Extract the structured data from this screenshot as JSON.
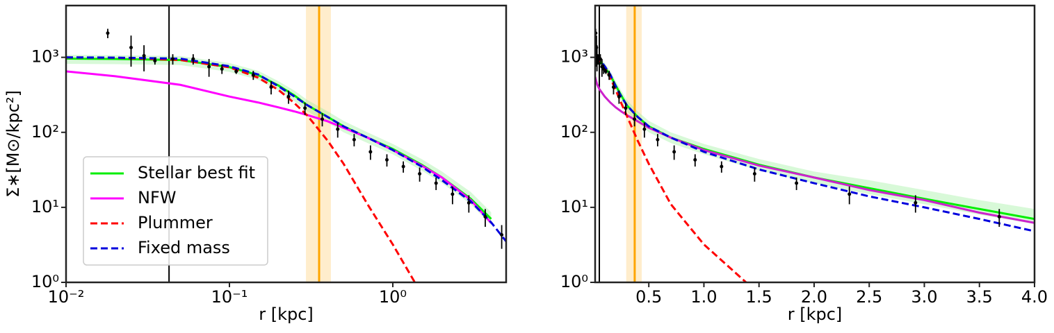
{
  "chart_data": [
    {
      "type": "line",
      "xscale": "log",
      "yscale": "log",
      "xlabel": "r [kpc]",
      "ylabel": "Σ∗[M⊙/kpc²]",
      "xlim": [
        0.01,
        4.94
      ],
      "ylim": [
        1,
        4900
      ],
      "xticks": [
        {
          "value": 0.01,
          "label": "10⁻²"
        },
        {
          "value": 0.1,
          "label": "10⁻¹"
        },
        {
          "value": 1,
          "label": "10⁰"
        }
      ],
      "yticks": [
        {
          "value": 1,
          "label": "10⁰"
        },
        {
          "value": 10,
          "label": "10¹"
        },
        {
          "value": 100,
          "label": "10²"
        },
        {
          "value": 1000,
          "label": "10³"
        }
      ],
      "legend": "lower left",
      "x": [
        0.01,
        0.02,
        0.05,
        0.1,
        0.15,
        0.2,
        0.25,
        0.3,
        0.4,
        0.5,
        0.7,
        1,
        1.5,
        2,
        3,
        4,
        5
      ],
      "band": {
        "color": "#90ee90",
        "lower": [
          820,
          810,
          790,
          640,
          500,
          360,
          260,
          190,
          135,
          100,
          72,
          51,
          31,
          21,
          11,
          5.8,
          null
        ],
        "upper": [
          1080,
          1070,
          1040,
          840,
          660,
          480,
          360,
          270,
          190,
          142,
          100,
          70,
          44,
          30,
          16,
          8.6,
          null
        ]
      },
      "series": [
        {
          "name": "Stellar best fit",
          "color": "#00ee00",
          "dash": false,
          "values": [
            960,
            950,
            920,
            740,
            580,
            420,
            310,
            230,
            160,
            120,
            85,
            60,
            37,
            25,
            13,
            7,
            null
          ]
        },
        {
          "name": "NFW",
          "color": "#ff00ff",
          "dash": false,
          "values": [
            650,
            560,
            430,
            300,
            250,
            215,
            190,
            170,
            140,
            115,
            85,
            58,
            36,
            25,
            12.5,
            6.2,
            null
          ]
        },
        {
          "name": "Plummer",
          "color": "#ff0000",
          "dash": true,
          "values": [
            997,
            987,
            922,
            736,
            536,
            366,
            245,
            167,
            77,
            38,
            11,
            3.2,
            0.7,
            null,
            null,
            null,
            null
          ]
        },
        {
          "name": "Fixed mass",
          "color": "#0000dd",
          "dash": true,
          "values": [
            1000,
            990,
            960,
            760,
            590,
            410,
            300,
            230,
            160,
            120,
            85,
            58,
            35,
            23,
            12,
            6.3,
            3.4
          ]
        }
      ],
      "points": {
        "color": "#000000",
        "x": [
          0.018,
          0.025,
          0.03,
          0.035,
          0.045,
          0.06,
          0.075,
          0.09,
          0.11,
          0.14,
          0.18,
          0.23,
          0.29,
          0.37,
          0.46,
          0.58,
          0.73,
          0.92,
          1.16,
          1.46,
          1.84,
          2.32,
          2.92,
          3.68,
          4.64
        ],
        "values": [
          2100,
          1350,
          1050,
          900,
          950,
          950,
          750,
          700,
          650,
          580,
          400,
          300,
          210,
          150,
          110,
          80,
          55,
          43,
          35,
          28,
          21,
          15,
          11.5,
          7.5,
          4.3
        ],
        "errors": [
          300,
          600,
          400,
          100,
          150,
          150,
          200,
          100,
          50,
          80,
          80,
          60,
          40,
          30,
          25,
          15,
          12,
          8,
          6,
          6,
          4,
          4,
          3,
          2,
          1.5
        ]
      },
      "vlines": [
        {
          "x": 0.0427,
          "color": "#000000"
        },
        {
          "x": 0.354,
          "color": "#ffa500"
        }
      ],
      "vbands": [
        {
          "x": [
            0.294,
            0.418
          ],
          "color": "#ffa500"
        }
      ]
    },
    {
      "type": "line",
      "xscale": "linear",
      "yscale": "log",
      "xlabel": "r [kpc]",
      "xlim": [
        0.013,
        4.0
      ],
      "ylim": [
        1,
        4900
      ],
      "xticks": [
        0.5,
        {
          "value": 1,
          "label": "1.0"
        },
        1.5,
        {
          "value": 2,
          "label": "2.0"
        },
        2.5,
        {
          "value": 3,
          "label": "3.0"
        },
        3.5,
        {
          "value": 4,
          "label": "4.0"
        }
      ],
      "yticks": [
        {
          "value": 1,
          "label": "10⁰"
        },
        {
          "value": 10,
          "label": "10¹"
        },
        {
          "value": 100,
          "label": "10²"
        },
        {
          "value": 1000,
          "label": "10³"
        }
      ],
      "x": [
        0.013,
        0.03,
        0.05,
        0.1,
        0.15,
        0.2,
        0.25,
        0.3,
        0.4,
        0.5,
        0.7,
        1,
        1.5,
        2,
        2.5,
        3,
        3.5,
        4
      ],
      "band": {
        "color": "#90ee90",
        "lower": [
          820,
          800,
          790,
          640,
          500,
          360,
          260,
          190,
          135,
          100,
          72,
          51,
          31,
          21,
          15,
          11,
          8,
          6
        ],
        "upper": [
          1080,
          1060,
          1040,
          840,
          660,
          480,
          360,
          270,
          190,
          142,
          100,
          70,
          44,
          30,
          23,
          17,
          12.5,
          9.5
        ]
      },
      "series": [
        {
          "color": "#00ee00",
          "dash": false,
          "values": [
            960,
            945,
            920,
            740,
            580,
            420,
            310,
            230,
            160,
            120,
            85,
            60,
            37,
            25,
            18,
            13,
            9.5,
            7
          ]
        },
        {
          "color": "#cc22cc",
          "dash": false,
          "values": [
            550,
            440,
            380,
            300,
            250,
            215,
            190,
            170,
            140,
            115,
            85,
            58,
            36,
            25,
            17,
            12.5,
            8.5,
            6.2
          ]
        },
        {
          "color": "#ff0000",
          "dash": true,
          "values": [
            997,
            970,
            922,
            736,
            536,
            366,
            245,
            167,
            77,
            38,
            11,
            3.2,
            0.7,
            null,
            null,
            null,
            null,
            null
          ]
        },
        {
          "color": "#0000dd",
          "dash": true,
          "values": [
            1000,
            985,
            960,
            760,
            590,
            410,
            300,
            230,
            160,
            120,
            85,
            55,
            32,
            21,
            14,
            10,
            7,
            4.8
          ]
        }
      ],
      "points": {
        "color": "#000000",
        "x": [
          0.018,
          0.025,
          0.03,
          0.035,
          0.045,
          0.06,
          0.075,
          0.09,
          0.11,
          0.14,
          0.18,
          0.23,
          0.29,
          0.37,
          0.46,
          0.58,
          0.73,
          0.92,
          1.16,
          1.46,
          1.84,
          2.32,
          2.92,
          3.68
        ],
        "values": [
          2100,
          1350,
          1050,
          900,
          950,
          950,
          750,
          700,
          650,
          580,
          400,
          300,
          210,
          150,
          110,
          80,
          55,
          43,
          35,
          28,
          21,
          15,
          11.5,
          7.5
        ],
        "errors": [
          300,
          600,
          400,
          100,
          150,
          150,
          200,
          100,
          50,
          80,
          80,
          60,
          40,
          30,
          25,
          15,
          12,
          8,
          6,
          6,
          4,
          4,
          3,
          2
        ]
      },
      "vlines": [
        {
          "x": 0.013,
          "color": "#000000"
        },
        {
          "x": 0.051,
          "color": "#000000"
        },
        {
          "x": 0.372,
          "color": "#ffa500"
        }
      ],
      "vbands": [
        {
          "x": [
            0.295,
            0.436
          ],
          "color": "#ffa500"
        }
      ]
    }
  ]
}
